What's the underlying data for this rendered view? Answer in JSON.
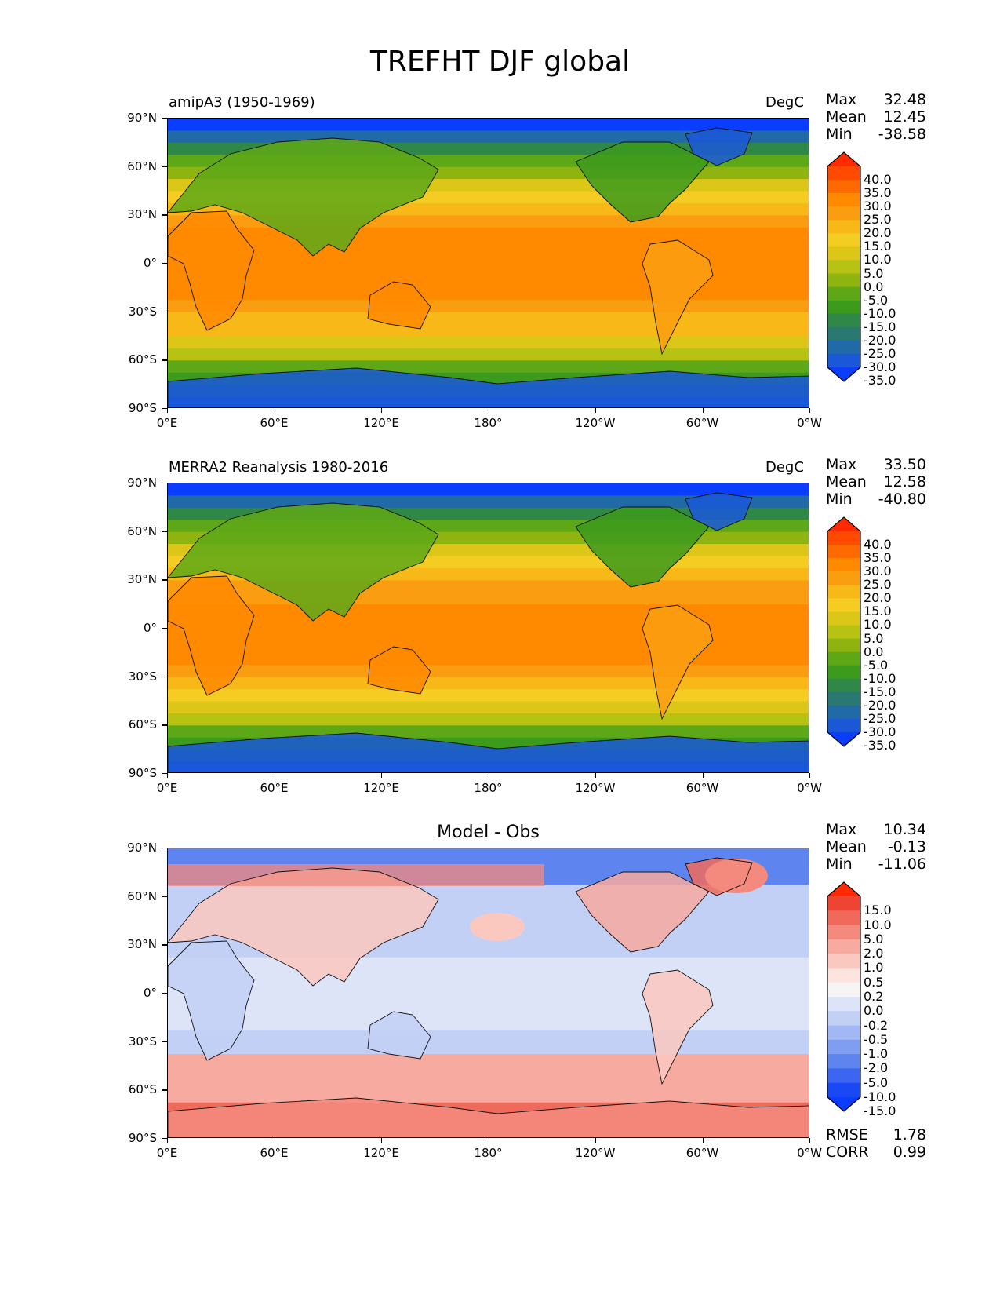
{
  "figure_title": "TREFHT DJF global",
  "panels": [
    {
      "left_title": "amipA3 (1950-1969)",
      "center_title": "",
      "units": "DegC",
      "stats": [
        {
          "label": "Max",
          "value": "32.48"
        },
        {
          "label": "Mean",
          "value": "12.45"
        },
        {
          "label": "Min",
          "value": "-38.58"
        }
      ],
      "colorbar_labels": [
        "40.0",
        "35.0",
        "30.0",
        "25.0",
        "20.0",
        "15.0",
        "10.0",
        "5.0",
        "0.0",
        "-5.0",
        "-10.0",
        "-15.0",
        "-20.0",
        "-25.0",
        "-30.0",
        "-35.0"
      ],
      "colorbar_colors": [
        "#ff2a00",
        "#ff4a00",
        "#ff6a00",
        "#ff8a00",
        "#fb9d10",
        "#f8b818",
        "#f4cc22",
        "#dcc618",
        "#b8c212",
        "#8fb410",
        "#5ea818",
        "#3c9a1c",
        "#2f8848",
        "#2a7872",
        "#206aa8",
        "#1a58d8",
        "#0a3dff"
      ],
      "field": "model"
    },
    {
      "left_title": "MERRA2 Reanalysis 1980-2016",
      "center_title": "",
      "units": "DegC",
      "stats": [
        {
          "label": "Max",
          "value": "33.50"
        },
        {
          "label": "Mean",
          "value": "12.58"
        },
        {
          "label": "Min",
          "value": "-40.80"
        }
      ],
      "colorbar_labels": [
        "40.0",
        "35.0",
        "30.0",
        "25.0",
        "20.0",
        "15.0",
        "10.0",
        "5.0",
        "0.0",
        "-5.0",
        "-10.0",
        "-15.0",
        "-20.0",
        "-25.0",
        "-30.0",
        "-35.0"
      ],
      "colorbar_colors": [
        "#ff2a00",
        "#ff4a00",
        "#ff6a00",
        "#ff8a00",
        "#fb9d10",
        "#f8b818",
        "#f4cc22",
        "#dcc618",
        "#b8c212",
        "#8fb410",
        "#5ea818",
        "#3c9a1c",
        "#2f8848",
        "#2a7872",
        "#206aa8",
        "#1a58d8",
        "#0a3dff"
      ],
      "field": "obs"
    },
    {
      "left_title": "",
      "center_title": "Model - Obs",
      "units": "",
      "stats": [
        {
          "label": "Max",
          "value": "10.34"
        },
        {
          "label": "Mean",
          "value": "-0.13"
        },
        {
          "label": "Min",
          "value": "-11.06"
        }
      ],
      "colorbar_labels": [
        "15.0",
        "10.0",
        "5.0",
        "2.0",
        "1.0",
        "0.5",
        "0.2",
        "0.0",
        "-0.2",
        "-0.5",
        "-1.0",
        "-2.0",
        "-5.0",
        "-10.0",
        "-15.0"
      ],
      "colorbar_colors": [
        "#ff2a00",
        "#ee4433",
        "#f06a5c",
        "#f48a7e",
        "#f7aaa0",
        "#fbc8c0",
        "#fde4de",
        "#f6f4f4",
        "#dde4f8",
        "#c2d0f6",
        "#a2b8f4",
        "#7f9ef2",
        "#5e84f0",
        "#3c66f2",
        "#1a48f4",
        "#0a3dff"
      ],
      "field": "diff",
      "footer_stats": [
        {
          "label": "RMSE",
          "value": "1.78"
        },
        {
          "label": "CORR",
          "value": "0.99"
        }
      ]
    }
  ],
  "axes": {
    "lat_ticks": [
      "90°N",
      "60°N",
      "30°N",
      "0°",
      "30°S",
      "60°S",
      "90°S"
    ],
    "lon_ticks": [
      "0°E",
      "60°E",
      "120°E",
      "180°",
      "120°W",
      "60°W",
      "0°W"
    ]
  }
}
